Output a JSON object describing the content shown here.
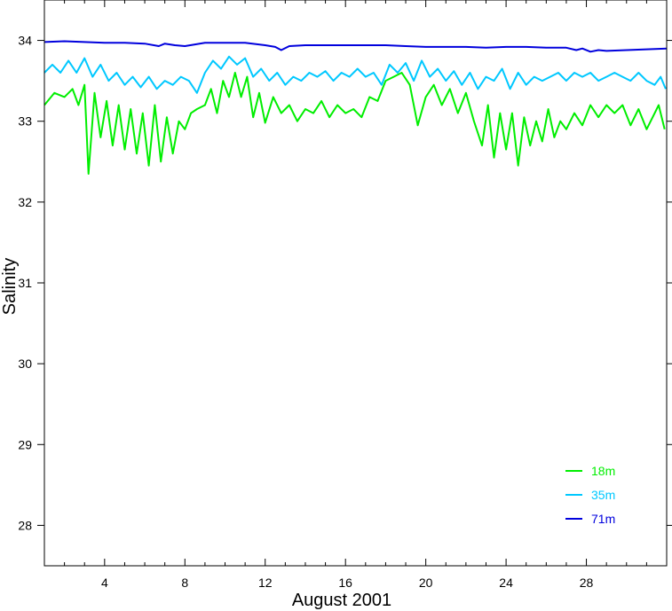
{
  "chart_data": {
    "type": "line",
    "title": "",
    "xlabel": "August 2001",
    "ylabel": "Salinity",
    "xlim": [
      1,
      32
    ],
    "ylim": [
      27.5,
      34.5
    ],
    "x_ticks": [
      4,
      8,
      12,
      16,
      20,
      24,
      28
    ],
    "y_ticks": [
      28,
      29,
      30,
      31,
      32,
      33,
      34
    ],
    "grid": false,
    "legend_position": "bottom-right",
    "series": [
      {
        "name": "18m",
        "color": "#00ee00",
        "x": [
          1.0,
          1.5,
          2.0,
          2.4,
          2.7,
          3.0,
          3.2,
          3.5,
          3.8,
          4.1,
          4.4,
          4.7,
          5.0,
          5.3,
          5.6,
          5.9,
          6.2,
          6.5,
          6.8,
          7.1,
          7.4,
          7.7,
          8.0,
          8.3,
          8.6,
          9.0,
          9.3,
          9.6,
          9.9,
          10.2,
          10.5,
          10.8,
          11.1,
          11.4,
          11.7,
          12.0,
          12.4,
          12.8,
          13.2,
          13.6,
          14.0,
          14.4,
          14.8,
          15.2,
          15.6,
          16.0,
          16.4,
          16.8,
          17.2,
          17.6,
          18.0,
          18.4,
          18.8,
          19.2,
          19.6,
          20.0,
          20.4,
          20.8,
          21.2,
          21.6,
          22.0,
          22.4,
          22.8,
          23.1,
          23.4,
          23.7,
          24.0,
          24.3,
          24.6,
          24.9,
          25.2,
          25.5,
          25.8,
          26.1,
          26.4,
          26.7,
          27.0,
          27.4,
          27.8,
          28.2,
          28.6,
          29.0,
          29.4,
          29.8,
          30.2,
          30.6,
          31.0,
          31.3,
          31.6,
          31.9
        ],
        "y": [
          33.2,
          33.35,
          33.3,
          33.4,
          33.2,
          33.45,
          32.35,
          33.35,
          32.8,
          33.25,
          32.7,
          33.2,
          32.65,
          33.15,
          32.6,
          33.1,
          32.45,
          33.2,
          32.5,
          33.05,
          32.6,
          33.0,
          32.9,
          33.1,
          33.15,
          33.2,
          33.4,
          33.1,
          33.5,
          33.3,
          33.6,
          33.3,
          33.55,
          33.05,
          33.35,
          32.98,
          33.3,
          33.1,
          33.2,
          33.0,
          33.15,
          33.1,
          33.25,
          33.05,
          33.2,
          33.1,
          33.15,
          33.05,
          33.3,
          33.25,
          33.5,
          33.55,
          33.6,
          33.45,
          32.95,
          33.3,
          33.45,
          33.2,
          33.4,
          33.1,
          33.35,
          33.0,
          32.7,
          33.2,
          32.55,
          33.1,
          32.65,
          33.1,
          32.45,
          33.05,
          32.7,
          33.0,
          32.75,
          33.15,
          32.8,
          33.0,
          32.9,
          33.1,
          32.95,
          33.2,
          33.05,
          33.2,
          33.1,
          33.2,
          32.95,
          33.15,
          32.9,
          33.05,
          33.2,
          32.9
        ]
      },
      {
        "name": "35m",
        "color": "#00c8ff",
        "x": [
          1.0,
          1.4,
          1.8,
          2.2,
          2.6,
          3.0,
          3.4,
          3.8,
          4.2,
          4.6,
          5.0,
          5.4,
          5.8,
          6.2,
          6.6,
          7.0,
          7.4,
          7.8,
          8.2,
          8.6,
          9.0,
          9.4,
          9.8,
          10.2,
          10.6,
          11.0,
          11.4,
          11.8,
          12.2,
          12.6,
          13.0,
          13.4,
          13.8,
          14.2,
          14.6,
          15.0,
          15.4,
          15.8,
          16.2,
          16.6,
          17.0,
          17.4,
          17.8,
          18.2,
          18.6,
          19.0,
          19.4,
          19.8,
          20.2,
          20.6,
          21.0,
          21.4,
          21.8,
          22.2,
          22.6,
          23.0,
          23.4,
          23.8,
          24.2,
          24.6,
          25.0,
          25.4,
          25.8,
          26.2,
          26.6,
          27.0,
          27.4,
          27.8,
          28.2,
          28.6,
          29.0,
          29.4,
          29.8,
          30.2,
          30.6,
          31.0,
          31.4,
          31.7,
          31.95
        ],
        "y": [
          33.6,
          33.7,
          33.6,
          33.75,
          33.6,
          33.78,
          33.55,
          33.7,
          33.5,
          33.6,
          33.45,
          33.55,
          33.42,
          33.55,
          33.4,
          33.5,
          33.45,
          33.55,
          33.5,
          33.35,
          33.6,
          33.75,
          33.65,
          33.8,
          33.7,
          33.78,
          33.55,
          33.65,
          33.5,
          33.6,
          33.45,
          33.55,
          33.5,
          33.6,
          33.55,
          33.62,
          33.5,
          33.6,
          33.55,
          33.65,
          33.55,
          33.6,
          33.45,
          33.7,
          33.6,
          33.72,
          33.5,
          33.75,
          33.55,
          33.65,
          33.5,
          33.62,
          33.45,
          33.6,
          33.4,
          33.55,
          33.5,
          33.65,
          33.4,
          33.6,
          33.45,
          33.55,
          33.5,
          33.55,
          33.6,
          33.5,
          33.6,
          33.55,
          33.6,
          33.5,
          33.55,
          33.6,
          33.55,
          33.5,
          33.6,
          33.5,
          33.45,
          33.55,
          33.4
        ]
      },
      {
        "name": "71m",
        "color": "#0000dd",
        "x": [
          1,
          2,
          3,
          4,
          5,
          6,
          6.7,
          7,
          7.5,
          8,
          8.5,
          9,
          10,
          11,
          12,
          12.5,
          12.8,
          13.2,
          14,
          15,
          16,
          17,
          18,
          19,
          20,
          21,
          22,
          23,
          24,
          25,
          26,
          27,
          27.5,
          27.8,
          28.2,
          28.6,
          29,
          30,
          31,
          32
        ],
        "y": [
          33.98,
          33.99,
          33.98,
          33.97,
          33.97,
          33.96,
          33.93,
          33.96,
          33.94,
          33.93,
          33.95,
          33.97,
          33.97,
          33.97,
          33.94,
          33.92,
          33.88,
          33.93,
          33.94,
          33.94,
          33.94,
          33.94,
          33.94,
          33.93,
          33.92,
          33.92,
          33.92,
          33.91,
          33.92,
          33.92,
          33.91,
          33.91,
          33.88,
          33.9,
          33.86,
          33.88,
          33.87,
          33.88,
          33.89,
          33.9
        ]
      }
    ]
  }
}
